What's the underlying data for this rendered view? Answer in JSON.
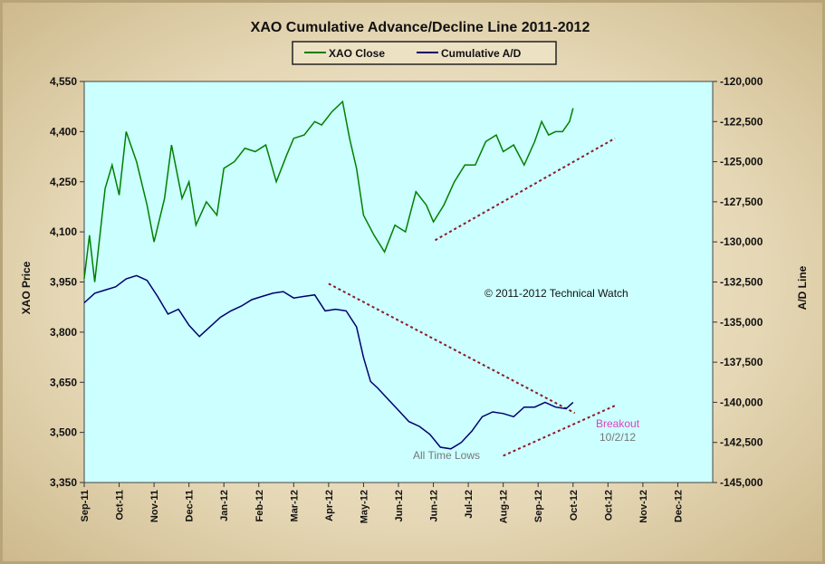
{
  "chart_data": {
    "type": "line",
    "title": "XAO Cumulative Advance/Decline Line 2011-2012",
    "ylabel_left": "XAO Price",
    "ylabel_right": "A/D Line",
    "ylim_left": [
      3350,
      4550
    ],
    "ylim_right": [
      -145000,
      -120000
    ],
    "yticks_left": [
      "4,550",
      "4,400",
      "4,250",
      "4,100",
      "3,950",
      "3,800",
      "3,650",
      "3,500",
      "3,350"
    ],
    "yticks_right": [
      "-120,000",
      "-122,500",
      "-125,000",
      "-127,500",
      "-130,000",
      "-132,500",
      "-135,000",
      "-137,500",
      "-140,000",
      "-142,500",
      "-145,000"
    ],
    "xticks": [
      "Sep-11",
      "Oct-11",
      "Nov-11",
      "Dec-11",
      "Jan-12",
      "Feb-12",
      "Mar-12",
      "Apr-12",
      "May-12",
      "Jun-12",
      "Jun-12",
      "Jul-12",
      "Aug-12",
      "Sep-12",
      "Oct-12",
      "Oct-12",
      "Nov-12",
      "Dec-12"
    ],
    "legend": [
      "XAO Close",
      "Cumulative A/D"
    ],
    "legend_position": "top-center",
    "colors": {
      "xao": "#008000",
      "ad": "#00006e",
      "trend": "#8b1a2a",
      "plot_bg": "#ccffff"
    },
    "series": [
      {
        "name": "XAO Close",
        "axis": "left",
        "t": [
          0,
          0.15,
          0.3,
          0.6,
          0.8,
          1.0,
          1.2,
          1.5,
          1.8,
          2.0,
          2.3,
          2.5,
          2.8,
          3.0,
          3.2,
          3.5,
          3.8,
          4.0,
          4.3,
          4.6,
          4.9,
          5.2,
          5.5,
          5.8,
          6.0,
          6.3,
          6.6,
          6.8,
          7.1,
          7.4,
          7.6,
          7.8,
          8.0,
          8.3,
          8.6,
          8.9,
          9.2,
          9.5,
          9.8,
          10.0,
          10.3,
          10.6,
          10.9,
          11.2,
          11.5,
          11.8,
          12.0,
          12.3,
          12.6,
          12.9,
          13.1,
          13.3,
          13.5,
          13.7,
          13.9,
          14.0
        ],
        "values": [
          3960,
          4090,
          3950,
          4230,
          4300,
          4210,
          4400,
          4310,
          4180,
          4070,
          4200,
          4360,
          4200,
          4250,
          4120,
          4190,
          4150,
          4290,
          4310,
          4350,
          4340,
          4360,
          4250,
          4330,
          4380,
          4390,
          4430,
          4420,
          4460,
          4490,
          4380,
          4290,
          4150,
          4090,
          4040,
          4120,
          4100,
          4220,
          4180,
          4130,
          4180,
          4250,
          4300,
          4300,
          4370,
          4390,
          4340,
          4360,
          4300,
          4370,
          4430,
          4390,
          4400,
          4400,
          4430,
          4470
        ]
      },
      {
        "name": "Cumulative A/D",
        "axis": "right",
        "t": [
          0,
          0.3,
          0.6,
          0.9,
          1.2,
          1.5,
          1.8,
          2.1,
          2.4,
          2.7,
          3.0,
          3.3,
          3.6,
          3.9,
          4.2,
          4.5,
          4.8,
          5.1,
          5.4,
          5.7,
          6.0,
          6.3,
          6.6,
          6.9,
          7.2,
          7.5,
          7.8,
          8.0,
          8.2,
          8.4,
          8.7,
          9.0,
          9.3,
          9.6,
          9.9,
          10.2,
          10.5,
          10.8,
          11.1,
          11.4,
          11.7,
          12.0,
          12.3,
          12.6,
          12.9,
          13.2,
          13.5,
          13.8,
          14.0
        ],
        "values": [
          -133800,
          -133200,
          -133000,
          -132800,
          -132300,
          -132100,
          -132400,
          -133400,
          -134500,
          -134200,
          -135200,
          -135900,
          -135300,
          -134700,
          -134300,
          -134000,
          -133600,
          -133400,
          -133200,
          -133100,
          -133500,
          -133400,
          -133300,
          -134300,
          -134200,
          -134300,
          -135300,
          -137200,
          -138700,
          -139100,
          -139800,
          -140500,
          -141200,
          -141500,
          -142000,
          -142800,
          -142900,
          -142500,
          -141800,
          -140900,
          -140600,
          -140700,
          -140900,
          -140300,
          -140300,
          -140000,
          -140300,
          -140400,
          -140000
        ]
      }
    ],
    "trendlines": [
      {
        "from": [
          10.05,
          4075
        ],
        "to": [
          15.2,
          4380
        ],
        "axis": "left"
      },
      {
        "from": [
          7.0,
          3945
        ],
        "to": [
          14.05,
          3558
        ],
        "axis": "left"
      },
      {
        "from": [
          12.0,
          3430
        ],
        "to": [
          15.2,
          3580
        ],
        "axis": "left"
      }
    ],
    "annotations": {
      "copyright": "© 2011-2012 Technical Watch",
      "lows": "All Time Lows",
      "breakout": "Breakout",
      "breakout_date": "10/2/12"
    }
  }
}
